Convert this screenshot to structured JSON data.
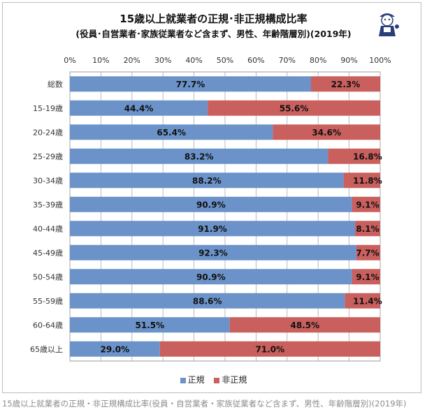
{
  "chart_data": {
    "type": "bar",
    "orientation": "horizontal",
    "stacked": true,
    "title": "15歳以上就業者の正規･非正規構成比率",
    "subtitle": "(役員･自営業者･家族従業者など含まず、男性、年齢階層別)(2019年)",
    "categories": [
      "総数",
      "15-19歳",
      "20-24歳",
      "25-29歳",
      "30-34歳",
      "35-39歳",
      "40-44歳",
      "45-49歳",
      "50-54歳",
      "55-59歳",
      "60-64歳",
      "65歳以上"
    ],
    "series": [
      {
        "name": "正規",
        "color": "#6b93c9",
        "values": [
          77.7,
          44.4,
          65.4,
          83.2,
          88.2,
          90.9,
          91.9,
          92.3,
          90.9,
          88.6,
          51.5,
          29.0
        ]
      },
      {
        "name": "非正規",
        "color": "#c9605e",
        "values": [
          22.3,
          55.6,
          34.6,
          16.8,
          11.8,
          9.1,
          8.1,
          7.7,
          9.1,
          11.4,
          48.5,
          71.0
        ]
      }
    ],
    "data_labels": [
      [
        "77.7%",
        "44.4%",
        "65.4%",
        "83.2%",
        "88.2%",
        "90.9%",
        "91.9%",
        "92.3%",
        "90.9%",
        "88.6%",
        "51.5%",
        "29.0%"
      ],
      [
        "22.3%",
        "55.6%",
        "34.6%",
        "16.8%",
        "11.8%",
        "9.1%",
        "8.1%",
        "7.7%",
        "9.1%",
        "11.4%",
        "48.5%",
        "71.0%"
      ]
    ],
    "xlim": [
      0,
      100
    ],
    "xticks": [
      "0%",
      "10%",
      "20%",
      "30%",
      "40%",
      "50%",
      "60%",
      "70%",
      "80%",
      "90%",
      "100%"
    ],
    "grid": true,
    "legend": "bottom"
  },
  "caption": "15歳以上就業者の正規・非正規構成比率(役員・自営業者・家族従業者など含まず、男性、年齢階層別)(2019年)"
}
